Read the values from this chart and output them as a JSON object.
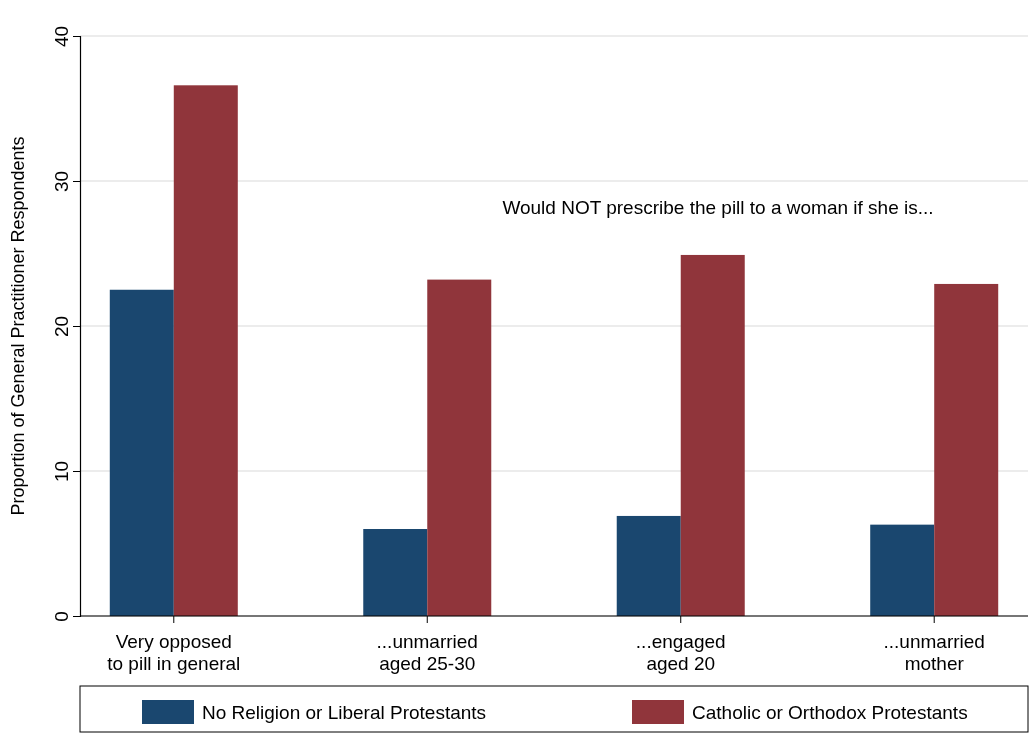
{
  "chart_data": {
    "type": "bar",
    "ylabel": "Proportion of General Practitioner Respondents",
    "categories": [
      "Very opposed\nto pill in general",
      "...unmarried\naged 25-30",
      "...engaged\naged 20",
      "...unmarried\nmother"
    ],
    "series": [
      {
        "name": "No Religion or Liberal Protestants",
        "color": "#1a476f",
        "values": [
          22.5,
          6.0,
          6.9,
          6.3
        ]
      },
      {
        "name": "Catholic or Orthodox Protestants",
        "color": "#90353b",
        "values": [
          36.6,
          23.2,
          24.9,
          22.9
        ]
      }
    ],
    "ylim": [
      0,
      40
    ],
    "yticks": [
      0,
      10,
      20,
      30,
      40
    ],
    "grid": "y",
    "legend": "bottom",
    "annotations": [
      "Would NOT prescribe the pill to a woman if she is..."
    ]
  }
}
